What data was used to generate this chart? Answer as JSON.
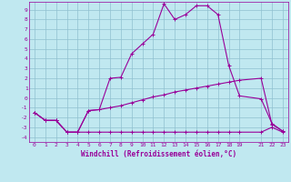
{
  "xlabel": "Windchill (Refroidissement éolien,°C)",
  "bg_color": "#c0e8f0",
  "grid_color": "#90c0d0",
  "line_color": "#990099",
  "ylim": [
    -4.5,
    9.8
  ],
  "xlim": [
    -0.5,
    23.5
  ],
  "x_ticks": [
    0,
    1,
    2,
    3,
    4,
    5,
    6,
    7,
    8,
    9,
    10,
    11,
    12,
    13,
    14,
    15,
    16,
    17,
    18,
    19,
    21,
    22,
    23
  ],
  "y_ticks": [
    -4,
    -3,
    -2,
    -1,
    0,
    1,
    2,
    3,
    4,
    5,
    6,
    7,
    8,
    9
  ],
  "curve1_x": [
    0,
    1,
    2,
    3,
    4,
    5,
    6,
    7,
    8,
    9,
    10,
    11,
    12,
    13,
    14,
    15,
    16,
    17,
    18,
    19,
    21,
    22,
    23
  ],
  "curve1_y": [
    -1.5,
    -2.3,
    -2.3,
    -3.5,
    -3.5,
    -1.3,
    -1.2,
    2.0,
    2.1,
    4.5,
    5.5,
    6.5,
    9.6,
    8.0,
    8.5,
    9.4,
    9.4,
    8.5,
    3.3,
    0.2,
    -0.1,
    -2.6,
    -3.4
  ],
  "curve2_x": [
    0,
    1,
    2,
    3,
    4,
    5,
    6,
    7,
    8,
    9,
    10,
    11,
    12,
    13,
    14,
    15,
    16,
    17,
    18,
    19,
    21,
    22,
    23
  ],
  "curve2_y": [
    -1.5,
    -2.3,
    -2.3,
    -3.5,
    -3.5,
    -1.3,
    -1.2,
    -1.0,
    -0.8,
    -0.5,
    -0.2,
    0.1,
    0.3,
    0.6,
    0.8,
    1.0,
    1.2,
    1.4,
    1.6,
    1.8,
    2.0,
    -2.7,
    -3.4
  ],
  "curve3_x": [
    0,
    1,
    2,
    3,
    4,
    5,
    6,
    7,
    8,
    9,
    10,
    11,
    12,
    13,
    14,
    15,
    16,
    17,
    18,
    19,
    21,
    22,
    23
  ],
  "curve3_y": [
    -1.5,
    -2.3,
    -2.3,
    -3.5,
    -3.5,
    -3.5,
    -3.5,
    -3.5,
    -3.5,
    -3.5,
    -3.5,
    -3.5,
    -3.5,
    -3.5,
    -3.5,
    -3.5,
    -3.5,
    -3.5,
    -3.5,
    -3.5,
    -3.5,
    -3.0,
    -3.5
  ],
  "tick_fontsize": 4.5,
  "xlabel_fontsize": 5.5
}
